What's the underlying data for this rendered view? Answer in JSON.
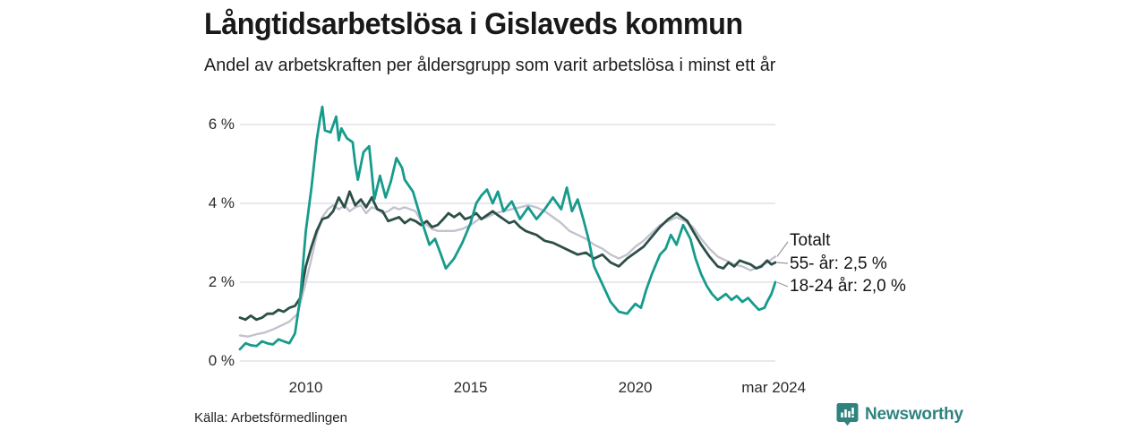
{
  "header": {
    "title": "Långtidsarbetslösa i Gislaveds kommun",
    "subtitle": "Andel av arbetskraften per åldersgrupp som varit arbetslösa i minst ett år"
  },
  "chart_data": {
    "type": "line",
    "title": "Långtidsarbetslösa i Gislaveds kommun",
    "subtitle": "Andel av arbetskraften per åldersgrupp som varit arbetslösa i minst ett år",
    "x_unit": "decimal_year",
    "xlim": [
      2008.0,
      2024.25
    ],
    "ylim": [
      0,
      6.5
    ],
    "grid": true,
    "y_ticks": [
      {
        "value": 0,
        "label": "0 %"
      },
      {
        "value": 2,
        "label": "2 %"
      },
      {
        "value": 4,
        "label": "4 %"
      },
      {
        "value": 6,
        "label": "6 %"
      }
    ],
    "x_ticks": [
      {
        "value": 2010.0,
        "label": "2010"
      },
      {
        "value": 2015.0,
        "label": "2015"
      },
      {
        "value": 2020.0,
        "label": "2020"
      },
      {
        "value": 2024.2,
        "label": "mar 2024"
      }
    ],
    "series": [
      {
        "name": "Totalt",
        "color": "#c3c2d0",
        "width": 2.4,
        "last_value_label": "Totalt",
        "points": [
          [
            2008.0,
            0.65
          ],
          [
            2008.25,
            0.62
          ],
          [
            2008.5,
            0.68
          ],
          [
            2008.75,
            0.72
          ],
          [
            2009.0,
            0.8
          ],
          [
            2009.25,
            0.9
          ],
          [
            2009.5,
            1.0
          ],
          [
            2009.75,
            1.2
          ],
          [
            2010.0,
            2.0
          ],
          [
            2010.17,
            2.6
          ],
          [
            2010.33,
            3.2
          ],
          [
            2010.5,
            3.65
          ],
          [
            2010.67,
            3.85
          ],
          [
            2010.83,
            3.95
          ],
          [
            2011.0,
            3.85
          ],
          [
            2011.17,
            3.95
          ],
          [
            2011.33,
            3.8
          ],
          [
            2011.5,
            3.9
          ],
          [
            2011.67,
            3.95
          ],
          [
            2011.83,
            3.75
          ],
          [
            2012.0,
            3.9
          ],
          [
            2012.17,
            3.85
          ],
          [
            2012.33,
            3.75
          ],
          [
            2012.5,
            3.8
          ],
          [
            2012.67,
            3.9
          ],
          [
            2012.83,
            3.85
          ],
          [
            2013.0,
            3.9
          ],
          [
            2013.17,
            3.85
          ],
          [
            2013.33,
            3.8
          ],
          [
            2013.5,
            3.55
          ],
          [
            2013.67,
            3.45
          ],
          [
            2013.83,
            3.35
          ],
          [
            2014.0,
            3.3
          ],
          [
            2014.25,
            3.3
          ],
          [
            2014.5,
            3.3
          ],
          [
            2014.75,
            3.35
          ],
          [
            2015.0,
            3.45
          ],
          [
            2015.25,
            3.6
          ],
          [
            2015.5,
            3.65
          ],
          [
            2015.75,
            3.75
          ],
          [
            2016.0,
            3.8
          ],
          [
            2016.25,
            3.85
          ],
          [
            2016.5,
            3.9
          ],
          [
            2016.75,
            3.95
          ],
          [
            2017.0,
            3.9
          ],
          [
            2017.25,
            3.8
          ],
          [
            2017.5,
            3.65
          ],
          [
            2017.75,
            3.5
          ],
          [
            2018.0,
            3.3
          ],
          [
            2018.25,
            3.2
          ],
          [
            2018.5,
            3.1
          ],
          [
            2018.75,
            2.95
          ],
          [
            2019.0,
            2.85
          ],
          [
            2019.25,
            2.7
          ],
          [
            2019.5,
            2.6
          ],
          [
            2019.75,
            2.7
          ],
          [
            2020.0,
            2.9
          ],
          [
            2020.25,
            3.05
          ],
          [
            2020.5,
            3.25
          ],
          [
            2020.75,
            3.45
          ],
          [
            2021.0,
            3.55
          ],
          [
            2021.25,
            3.65
          ],
          [
            2021.5,
            3.55
          ],
          [
            2021.75,
            3.4
          ],
          [
            2022.0,
            3.1
          ],
          [
            2022.25,
            2.85
          ],
          [
            2022.5,
            2.65
          ],
          [
            2022.75,
            2.55
          ],
          [
            2023.0,
            2.45
          ],
          [
            2023.25,
            2.4
          ],
          [
            2023.5,
            2.3
          ],
          [
            2023.75,
            2.4
          ],
          [
            2024.0,
            2.5
          ],
          [
            2024.25,
            2.65
          ]
        ]
      },
      {
        "name": "55- år",
        "color": "#2c4f47",
        "width": 2.8,
        "last_value_label": "55- år: 2,5 %",
        "points": [
          [
            2008.0,
            1.1
          ],
          [
            2008.17,
            1.05
          ],
          [
            2008.33,
            1.15
          ],
          [
            2008.5,
            1.05
          ],
          [
            2008.67,
            1.1
          ],
          [
            2008.83,
            1.2
          ],
          [
            2009.0,
            1.2
          ],
          [
            2009.17,
            1.3
          ],
          [
            2009.33,
            1.25
          ],
          [
            2009.5,
            1.35
          ],
          [
            2009.67,
            1.4
          ],
          [
            2009.83,
            1.6
          ],
          [
            2010.0,
            2.4
          ],
          [
            2010.17,
            2.9
          ],
          [
            2010.33,
            3.3
          ],
          [
            2010.5,
            3.6
          ],
          [
            2010.67,
            3.65
          ],
          [
            2010.83,
            3.8
          ],
          [
            2011.0,
            4.15
          ],
          [
            2011.17,
            3.9
          ],
          [
            2011.33,
            4.3
          ],
          [
            2011.5,
            3.95
          ],
          [
            2011.67,
            4.1
          ],
          [
            2011.83,
            3.9
          ],
          [
            2012.0,
            4.15
          ],
          [
            2012.17,
            3.85
          ],
          [
            2012.33,
            3.8
          ],
          [
            2012.5,
            3.55
          ],
          [
            2012.67,
            3.6
          ],
          [
            2012.83,
            3.65
          ],
          [
            2013.0,
            3.5
          ],
          [
            2013.17,
            3.6
          ],
          [
            2013.33,
            3.55
          ],
          [
            2013.5,
            3.45
          ],
          [
            2013.67,
            3.55
          ],
          [
            2013.83,
            3.4
          ],
          [
            2014.0,
            3.45
          ],
          [
            2014.17,
            3.6
          ],
          [
            2014.33,
            3.75
          ],
          [
            2014.5,
            3.65
          ],
          [
            2014.67,
            3.75
          ],
          [
            2014.83,
            3.6
          ],
          [
            2015.0,
            3.65
          ],
          [
            2015.17,
            3.75
          ],
          [
            2015.33,
            3.6
          ],
          [
            2015.5,
            3.7
          ],
          [
            2015.67,
            3.8
          ],
          [
            2015.83,
            3.7
          ],
          [
            2016.0,
            3.6
          ],
          [
            2016.17,
            3.5
          ],
          [
            2016.33,
            3.55
          ],
          [
            2016.5,
            3.4
          ],
          [
            2016.67,
            3.3
          ],
          [
            2016.83,
            3.25
          ],
          [
            2017.0,
            3.2
          ],
          [
            2017.25,
            3.05
          ],
          [
            2017.5,
            3.0
          ],
          [
            2017.75,
            2.9
          ],
          [
            2018.0,
            2.8
          ],
          [
            2018.25,
            2.7
          ],
          [
            2018.5,
            2.75
          ],
          [
            2018.75,
            2.6
          ],
          [
            2019.0,
            2.7
          ],
          [
            2019.25,
            2.5
          ],
          [
            2019.5,
            2.4
          ],
          [
            2019.75,
            2.6
          ],
          [
            2020.0,
            2.75
          ],
          [
            2020.25,
            2.9
          ],
          [
            2020.5,
            3.15
          ],
          [
            2020.75,
            3.4
          ],
          [
            2021.0,
            3.6
          ],
          [
            2021.25,
            3.75
          ],
          [
            2021.42,
            3.65
          ],
          [
            2021.58,
            3.55
          ],
          [
            2021.75,
            3.3
          ],
          [
            2022.0,
            2.95
          ],
          [
            2022.25,
            2.65
          ],
          [
            2022.5,
            2.4
          ],
          [
            2022.67,
            2.35
          ],
          [
            2022.83,
            2.5
          ],
          [
            2023.0,
            2.4
          ],
          [
            2023.17,
            2.55
          ],
          [
            2023.33,
            2.5
          ],
          [
            2023.5,
            2.45
          ],
          [
            2023.67,
            2.35
          ],
          [
            2023.83,
            2.4
          ],
          [
            2024.0,
            2.55
          ],
          [
            2024.13,
            2.45
          ],
          [
            2024.25,
            2.5
          ]
        ]
      },
      {
        "name": "18-24 år",
        "color": "#169b8c",
        "width": 2.8,
        "last_value_label": "18-24 år: 2,0 %",
        "points": [
          [
            2008.0,
            0.3
          ],
          [
            2008.17,
            0.45
          ],
          [
            2008.33,
            0.4
          ],
          [
            2008.5,
            0.38
          ],
          [
            2008.67,
            0.5
          ],
          [
            2008.83,
            0.45
          ],
          [
            2009.0,
            0.42
          ],
          [
            2009.17,
            0.55
          ],
          [
            2009.33,
            0.5
          ],
          [
            2009.5,
            0.45
          ],
          [
            2009.67,
            0.7
          ],
          [
            2009.83,
            1.6
          ],
          [
            2010.0,
            3.3
          ],
          [
            2010.17,
            4.4
          ],
          [
            2010.33,
            5.6
          ],
          [
            2010.42,
            6.1
          ],
          [
            2010.5,
            6.45
          ],
          [
            2010.58,
            5.85
          ],
          [
            2010.75,
            5.8
          ],
          [
            2010.92,
            6.2
          ],
          [
            2011.0,
            5.6
          ],
          [
            2011.08,
            5.9
          ],
          [
            2011.25,
            5.65
          ],
          [
            2011.42,
            5.55
          ],
          [
            2011.5,
            5.0
          ],
          [
            2011.58,
            4.6
          ],
          [
            2011.75,
            5.3
          ],
          [
            2011.92,
            5.45
          ],
          [
            2012.0,
            4.8
          ],
          [
            2012.08,
            4.1
          ],
          [
            2012.25,
            4.7
          ],
          [
            2012.42,
            4.15
          ],
          [
            2012.58,
            4.55
          ],
          [
            2012.75,
            5.15
          ],
          [
            2012.92,
            4.9
          ],
          [
            2013.0,
            4.6
          ],
          [
            2013.25,
            4.3
          ],
          [
            2013.5,
            3.6
          ],
          [
            2013.75,
            2.95
          ],
          [
            2013.92,
            3.1
          ],
          [
            2014.08,
            2.75
          ],
          [
            2014.25,
            2.35
          ],
          [
            2014.5,
            2.6
          ],
          [
            2014.75,
            3.0
          ],
          [
            2015.0,
            3.5
          ],
          [
            2015.17,
            4.0
          ],
          [
            2015.33,
            4.2
          ],
          [
            2015.5,
            4.35
          ],
          [
            2015.67,
            4.0
          ],
          [
            2015.83,
            4.3
          ],
          [
            2016.0,
            3.8
          ],
          [
            2016.25,
            4.05
          ],
          [
            2016.5,
            3.6
          ],
          [
            2016.75,
            3.9
          ],
          [
            2017.0,
            3.6
          ],
          [
            2017.25,
            3.85
          ],
          [
            2017.5,
            4.15
          ],
          [
            2017.75,
            3.85
          ],
          [
            2017.92,
            4.4
          ],
          [
            2018.08,
            3.8
          ],
          [
            2018.25,
            4.1
          ],
          [
            2018.42,
            3.6
          ],
          [
            2018.58,
            3.1
          ],
          [
            2018.75,
            2.4
          ],
          [
            2019.0,
            1.95
          ],
          [
            2019.25,
            1.5
          ],
          [
            2019.5,
            1.25
          ],
          [
            2019.75,
            1.2
          ],
          [
            2020.0,
            1.45
          ],
          [
            2020.17,
            1.35
          ],
          [
            2020.33,
            1.8
          ],
          [
            2020.5,
            2.2
          ],
          [
            2020.75,
            2.7
          ],
          [
            2020.92,
            2.85
          ],
          [
            2021.08,
            3.2
          ],
          [
            2021.25,
            2.95
          ],
          [
            2021.45,
            3.45
          ],
          [
            2021.67,
            3.1
          ],
          [
            2021.83,
            2.6
          ],
          [
            2022.0,
            2.2
          ],
          [
            2022.17,
            1.9
          ],
          [
            2022.33,
            1.7
          ],
          [
            2022.5,
            1.55
          ],
          [
            2022.75,
            1.7
          ],
          [
            2022.92,
            1.55
          ],
          [
            2023.08,
            1.65
          ],
          [
            2023.25,
            1.5
          ],
          [
            2023.42,
            1.6
          ],
          [
            2023.58,
            1.45
          ],
          [
            2023.75,
            1.3
          ],
          [
            2023.92,
            1.35
          ],
          [
            2024.0,
            1.5
          ],
          [
            2024.13,
            1.7
          ],
          [
            2024.25,
            2.0
          ]
        ]
      }
    ],
    "legend_position": "right-of-line-ends"
  },
  "legend": {
    "items": [
      {
        "label": "Totalt"
      },
      {
        "label": "55- år: 2,5 %"
      },
      {
        "label": "18-24 år: 2,0 %"
      }
    ]
  },
  "footer": {
    "source": "Källa: Arbetsförmedlingen",
    "brand": "Newsworthy"
  },
  "colors": {
    "teal_series": "#169b8c",
    "dark_series": "#2c4f47",
    "total_series": "#c3c2d0",
    "gridline": "#e2e1e8",
    "connector": "#999999",
    "brand_teal": "#2f837e",
    "text": "#1a1a1a"
  }
}
